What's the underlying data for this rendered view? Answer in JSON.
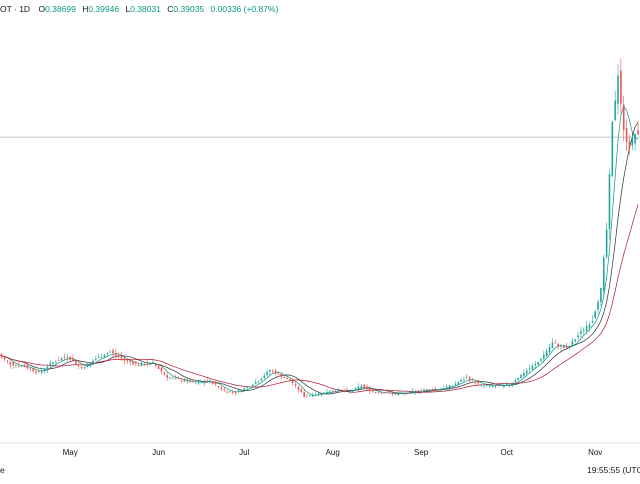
{
  "header": {
    "symbol": "OT · 1D",
    "open_label": "O",
    "open": "0.38699",
    "high_label": "H",
    "high": "0.39946",
    "low_label": "L",
    "low": "0.38031",
    "close_label": "C",
    "close": "0.39035",
    "change": "0.00336 (+0.87%)"
  },
  "footer": {
    "left_text": "e",
    "time": "19:55:55 (UTC"
  },
  "colors": {
    "up": "#26a69a",
    "down": "#ef5350",
    "ma_fast": "#089981",
    "ma_mid": "#2a2e39",
    "ma_slow": "#b2182b",
    "price_line": "#b2b5be"
  },
  "chart_data": {
    "type": "candlestick",
    "price_line": 0.39035,
    "ylim": [
      0.04,
      0.52
    ],
    "x_ticks": [
      "May",
      "Jun",
      "Jul",
      "Aug",
      "Sep",
      "Oct",
      "Nov"
    ],
    "x_tick_days": [
      26,
      57,
      87,
      118,
      149,
      179,
      210
    ],
    "first_day": 0,
    "last_day": 225,
    "key_closes": [
      [
        0,
        0.14
      ],
      [
        5,
        0.128
      ],
      [
        10,
        0.125
      ],
      [
        15,
        0.118
      ],
      [
        20,
        0.13
      ],
      [
        25,
        0.137
      ],
      [
        30,
        0.123
      ],
      [
        35,
        0.134
      ],
      [
        40,
        0.142
      ],
      [
        45,
        0.132
      ],
      [
        50,
        0.127
      ],
      [
        55,
        0.129
      ],
      [
        60,
        0.113
      ],
      [
        65,
        0.109
      ],
      [
        70,
        0.106
      ],
      [
        75,
        0.108
      ],
      [
        80,
        0.097
      ],
      [
        84,
        0.095
      ],
      [
        88,
        0.101
      ],
      [
        92,
        0.109
      ],
      [
        96,
        0.121
      ],
      [
        100,
        0.114
      ],
      [
        104,
        0.106
      ],
      [
        108,
        0.091
      ],
      [
        112,
        0.093
      ],
      [
        116,
        0.096
      ],
      [
        120,
        0.098
      ],
      [
        124,
        0.096
      ],
      [
        128,
        0.103
      ],
      [
        132,
        0.096
      ],
      [
        136,
        0.095
      ],
      [
        140,
        0.093
      ],
      [
        145,
        0.095
      ],
      [
        150,
        0.098
      ],
      [
        155,
        0.099
      ],
      [
        160,
        0.103
      ],
      [
        165,
        0.112
      ],
      [
        170,
        0.103
      ],
      [
        175,
        0.102
      ],
      [
        180,
        0.104
      ],
      [
        185,
        0.118
      ],
      [
        190,
        0.13
      ],
      [
        195,
        0.152
      ],
      [
        200,
        0.145
      ],
      [
        205,
        0.165
      ],
      [
        209,
        0.179
      ],
      [
        212,
        0.214
      ],
      [
        214,
        0.283
      ],
      [
        216,
        0.405
      ],
      [
        218,
        0.465
      ],
      [
        220,
        0.396
      ],
      [
        222,
        0.38
      ],
      [
        224,
        0.395
      ],
      [
        225,
        0.39
      ]
    ]
  }
}
